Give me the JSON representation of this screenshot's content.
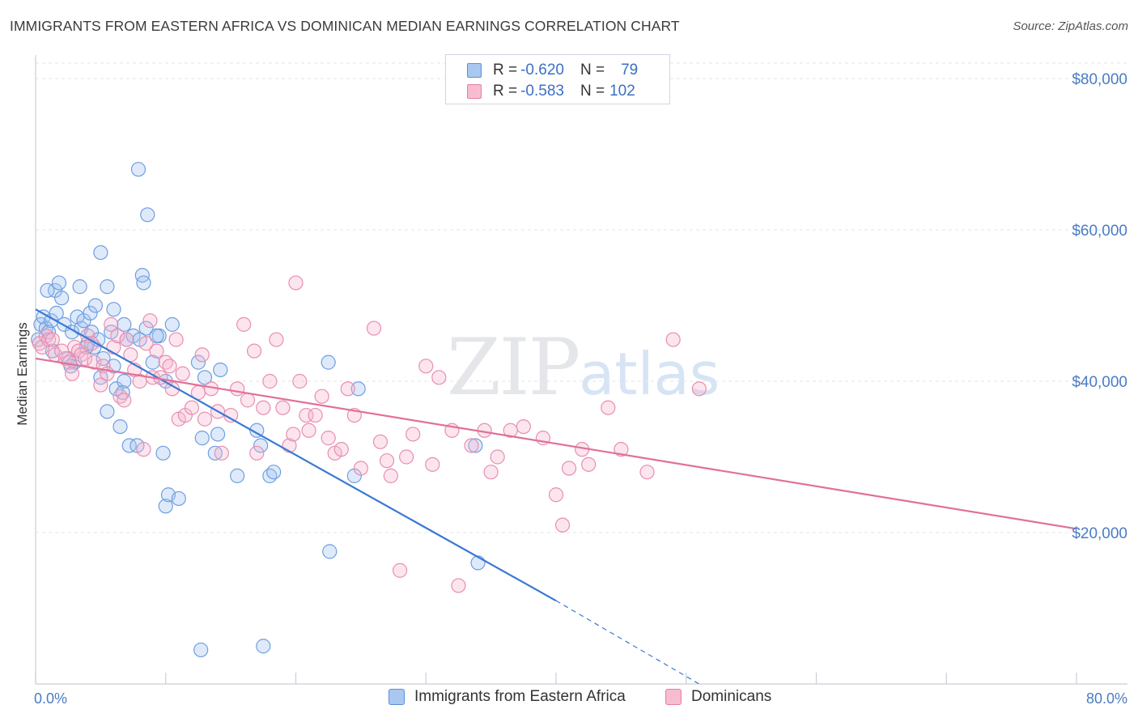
{
  "title": "IMMIGRANTS FROM EASTERN AFRICA VS DOMINICAN MEDIAN EARNINGS CORRELATION CHART",
  "source": "Source: ZipAtlas.com",
  "watermark": {
    "zip": "ZIP",
    "atlas": "atlas"
  },
  "legend": {
    "rows": [
      {
        "r_label": "R =",
        "r_value": "-0.620",
        "n_label": "N =",
        "n_value": "79",
        "color": "#a9c8f0",
        "stroke": "#5b8fd6"
      },
      {
        "r_label": "R =",
        "r_value": "-0.583",
        "n_label": "N =",
        "n_value": "102",
        "color": "#f7bcd0",
        "stroke": "#e57fa3"
      }
    ]
  },
  "bottom_legend": [
    {
      "label": "Immigrants from Eastern Africa",
      "color": "#a9c8f0",
      "stroke": "#5b8fd6"
    },
    {
      "label": "Dominicans",
      "color": "#f7bcd0",
      "stroke": "#e57fa3"
    }
  ],
  "chart_data": {
    "type": "scatter",
    "ylabel": "Median Earnings",
    "x_tick_labels": [
      "0.0%",
      "80.0%"
    ],
    "y_tick_labels": [
      "$80,000",
      "$60,000",
      "$40,000",
      "$20,000"
    ],
    "y_ticks": [
      80000,
      60000,
      40000,
      20000
    ],
    "xlim": [
      0,
      80
    ],
    "ylim": [
      0,
      82000
    ],
    "grid": true,
    "legend_position": "top-center",
    "colors": {
      "blue": "#3a78d4",
      "pink": "#e0709a"
    },
    "series": [
      {
        "name": "Immigrants from Eastern Africa",
        "color": "#3a78d4",
        "trend": {
          "x0": 0,
          "y0": 49500,
          "x1": 40,
          "y1": 11000,
          "dash_to_x": 51,
          "dash_to_y": 0
        },
        "points": [
          [
            0.2,
            45500
          ],
          [
            0.4,
            47500
          ],
          [
            0.6,
            48500
          ],
          [
            0.8,
            47000
          ],
          [
            1.0,
            46500
          ],
          [
            1.2,
            48000
          ],
          [
            1.5,
            52000
          ],
          [
            1.6,
            49000
          ],
          [
            1.8,
            53000
          ],
          [
            2.0,
            51000
          ],
          [
            2.2,
            47500
          ],
          [
            2.5,
            43000
          ],
          [
            2.8,
            46500
          ],
          [
            3.0,
            42500
          ],
          [
            3.2,
            48500
          ],
          [
            3.4,
            52500
          ],
          [
            3.5,
            47000
          ],
          [
            3.7,
            48000
          ],
          [
            4.0,
            45000
          ],
          [
            4.2,
            49000
          ],
          [
            4.3,
            46500
          ],
          [
            4.5,
            44500
          ],
          [
            4.6,
            50000
          ],
          [
            4.8,
            45500
          ],
          [
            5.0,
            57000
          ],
          [
            5.0,
            40500
          ],
          [
            5.2,
            43000
          ],
          [
            5.5,
            52500
          ],
          [
            5.5,
            36000
          ],
          [
            5.8,
            46500
          ],
          [
            6.0,
            49500
          ],
          [
            6.0,
            42000
          ],
          [
            6.2,
            39000
          ],
          [
            6.5,
            34000
          ],
          [
            6.8,
            40000
          ],
          [
            6.8,
            47500
          ],
          [
            7.0,
            45500
          ],
          [
            7.2,
            31500
          ],
          [
            7.5,
            46000
          ],
          [
            7.8,
            31500
          ],
          [
            7.9,
            68000
          ],
          [
            8.0,
            45500
          ],
          [
            8.2,
            54000
          ],
          [
            8.3,
            53000
          ],
          [
            8.5,
            47000
          ],
          [
            8.6,
            62000
          ],
          [
            9.0,
            42500
          ],
          [
            9.5,
            46000
          ],
          [
            9.8,
            30500
          ],
          [
            10.0,
            40000
          ],
          [
            10.0,
            23500
          ],
          [
            10.2,
            25000
          ],
          [
            10.5,
            47500
          ],
          [
            11.0,
            24500
          ],
          [
            12.5,
            42500
          ],
          [
            12.7,
            4500
          ],
          [
            12.8,
            32500
          ],
          [
            13.0,
            40500
          ],
          [
            13.8,
            30500
          ],
          [
            14.0,
            33000
          ],
          [
            14.2,
            41500
          ],
          [
            15.5,
            27500
          ],
          [
            17.0,
            33500
          ],
          [
            17.3,
            31500
          ],
          [
            17.5,
            5000
          ],
          [
            18.0,
            27500
          ],
          [
            18.3,
            28000
          ],
          [
            22.5,
            42500
          ],
          [
            22.6,
            17500
          ],
          [
            24.5,
            27500
          ],
          [
            24.8,
            39000
          ],
          [
            33.8,
            31500
          ],
          [
            34.0,
            16000
          ],
          [
            1.3,
            44000
          ],
          [
            2.7,
            42000
          ],
          [
            3.9,
            44500
          ],
          [
            6.7,
            38500
          ],
          [
            9.3,
            46000
          ],
          [
            0.9,
            52000
          ]
        ]
      },
      {
        "name": "Dominicans",
        "color": "#e0709a",
        "trend": {
          "x0": 0,
          "y0": 43000,
          "x1": 80,
          "y1": 20500
        },
        "points": [
          [
            0.3,
            45000
          ],
          [
            0.5,
            44500
          ],
          [
            0.8,
            46000
          ],
          [
            1.0,
            45500
          ],
          [
            1.3,
            45500
          ],
          [
            1.5,
            43500
          ],
          [
            2.0,
            44000
          ],
          [
            2.3,
            43000
          ],
          [
            2.6,
            42500
          ],
          [
            2.8,
            41000
          ],
          [
            3.0,
            44500
          ],
          [
            3.3,
            44000
          ],
          [
            3.5,
            43500
          ],
          [
            3.8,
            43000
          ],
          [
            4.0,
            46000
          ],
          [
            4.3,
            45000
          ],
          [
            4.5,
            42500
          ],
          [
            5.0,
            39500
          ],
          [
            5.2,
            42000
          ],
          [
            5.5,
            41000
          ],
          [
            5.8,
            47500
          ],
          [
            6.0,
            44500
          ],
          [
            6.3,
            46000
          ],
          [
            6.5,
            38000
          ],
          [
            6.8,
            37500
          ],
          [
            7.0,
            45500
          ],
          [
            7.3,
            43500
          ],
          [
            7.6,
            41500
          ],
          [
            8.0,
            40000
          ],
          [
            8.3,
            31000
          ],
          [
            8.5,
            45000
          ],
          [
            8.8,
            48000
          ],
          [
            9.0,
            40500
          ],
          [
            9.3,
            44000
          ],
          [
            9.6,
            40500
          ],
          [
            10.0,
            42500
          ],
          [
            10.3,
            42000
          ],
          [
            10.5,
            39000
          ],
          [
            10.8,
            45500
          ],
          [
            11.0,
            35000
          ],
          [
            11.3,
            41000
          ],
          [
            11.5,
            35500
          ],
          [
            12.0,
            36500
          ],
          [
            12.5,
            38500
          ],
          [
            12.8,
            43500
          ],
          [
            13.0,
            35000
          ],
          [
            13.5,
            39000
          ],
          [
            14.0,
            36000
          ],
          [
            14.3,
            30500
          ],
          [
            15.0,
            35500
          ],
          [
            15.5,
            39000
          ],
          [
            16.0,
            47500
          ],
          [
            16.3,
            37500
          ],
          [
            16.8,
            44000
          ],
          [
            17.0,
            30500
          ],
          [
            17.5,
            36500
          ],
          [
            18.0,
            40000
          ],
          [
            18.5,
            45500
          ],
          [
            19.0,
            36500
          ],
          [
            19.5,
            31500
          ],
          [
            19.8,
            33000
          ],
          [
            20.0,
            53000
          ],
          [
            20.3,
            40000
          ],
          [
            20.8,
            35500
          ],
          [
            21.0,
            33500
          ],
          [
            21.5,
            35500
          ],
          [
            22.0,
            38000
          ],
          [
            22.5,
            32500
          ],
          [
            23.0,
            30500
          ],
          [
            23.5,
            31000
          ],
          [
            24.0,
            39000
          ],
          [
            24.5,
            35500
          ],
          [
            25.0,
            28500
          ],
          [
            26.0,
            47000
          ],
          [
            26.5,
            32000
          ],
          [
            27.0,
            29500
          ],
          [
            27.3,
            27500
          ],
          [
            28.0,
            15000
          ],
          [
            28.5,
            30000
          ],
          [
            29.0,
            33000
          ],
          [
            30.0,
            42000
          ],
          [
            30.5,
            29000
          ],
          [
            31.0,
            40500
          ],
          [
            32.0,
            33500
          ],
          [
            32.5,
            13000
          ],
          [
            33.5,
            31500
          ],
          [
            34.5,
            33500
          ],
          [
            35.0,
            28000
          ],
          [
            35.5,
            30000
          ],
          [
            36.5,
            33500
          ],
          [
            37.5,
            34000
          ],
          [
            39.0,
            32500
          ],
          [
            40.0,
            25000
          ],
          [
            40.5,
            21000
          ],
          [
            41.0,
            28500
          ],
          [
            42.0,
            31000
          ],
          [
            42.5,
            29000
          ],
          [
            44.0,
            36500
          ],
          [
            45.0,
            31000
          ],
          [
            47.0,
            28000
          ],
          [
            49.0,
            45500
          ],
          [
            51.0,
            39000
          ]
        ]
      }
    ]
  }
}
